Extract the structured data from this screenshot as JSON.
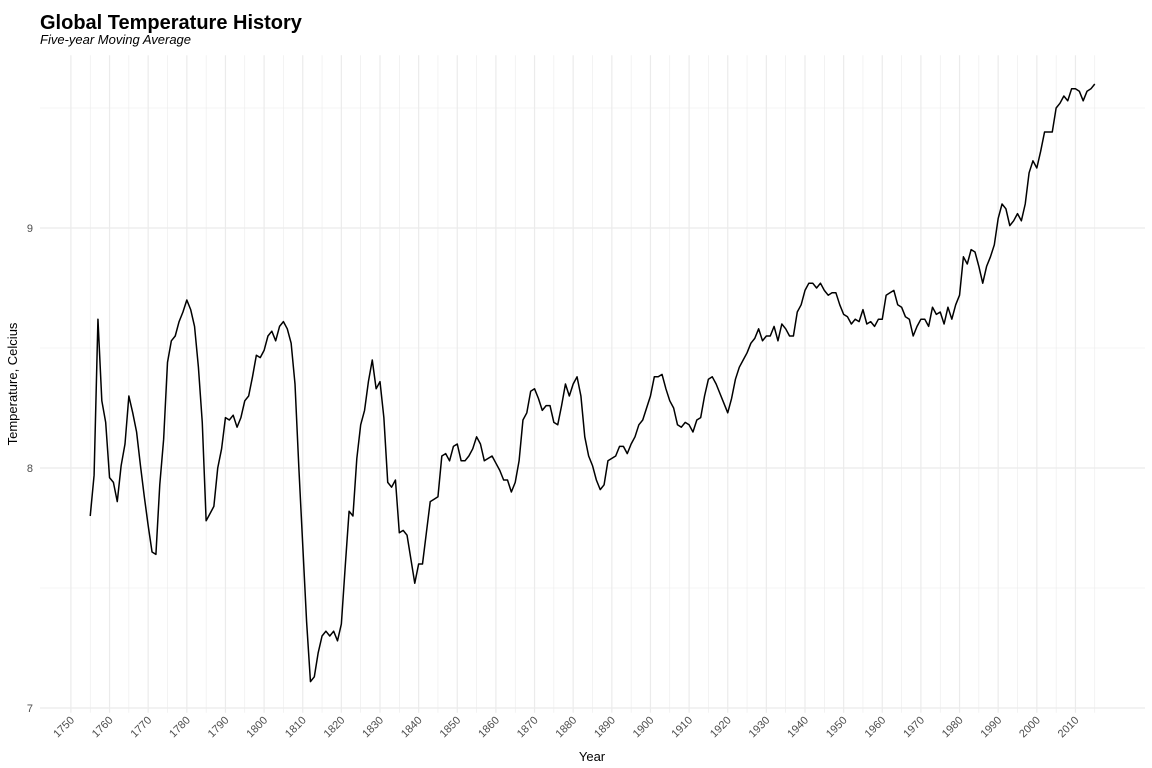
{
  "chart_data": {
    "type": "line",
    "title": "Global Temperature History",
    "subtitle": "Five-year Moving Average",
    "x_label": "Year",
    "y_label": "Temperature, Celcius",
    "x": [
      1755,
      1756,
      1757,
      1758,
      1759,
      1760,
      1761,
      1762,
      1763,
      1764,
      1765,
      1766,
      1767,
      1768,
      1769,
      1770,
      1771,
      1772,
      1773,
      1774,
      1775,
      1776,
      1777,
      1778,
      1779,
      1780,
      1781,
      1782,
      1783,
      1784,
      1785,
      1786,
      1787,
      1788,
      1789,
      1790,
      1791,
      1792,
      1793,
      1794,
      1795,
      1796,
      1797,
      1798,
      1799,
      1800,
      1801,
      1802,
      1803,
      1804,
      1805,
      1806,
      1807,
      1808,
      1809,
      1810,
      1811,
      1812,
      1813,
      1814,
      1815,
      1816,
      1817,
      1818,
      1819,
      1820,
      1821,
      1822,
      1823,
      1824,
      1825,
      1826,
      1827,
      1828,
      1829,
      1830,
      1831,
      1832,
      1833,
      1834,
      1835,
      1836,
      1837,
      1838,
      1839,
      1840,
      1841,
      1842,
      1843,
      1844,
      1845,
      1846,
      1847,
      1848,
      1849,
      1850,
      1851,
      1852,
      1853,
      1854,
      1855,
      1856,
      1857,
      1858,
      1859,
      1860,
      1861,
      1862,
      1863,
      1864,
      1865,
      1866,
      1867,
      1868,
      1869,
      1870,
      1871,
      1872,
      1873,
      1874,
      1875,
      1876,
      1877,
      1878,
      1879,
      1880,
      1881,
      1882,
      1883,
      1884,
      1885,
      1886,
      1887,
      1888,
      1889,
      1890,
      1891,
      1892,
      1893,
      1894,
      1895,
      1896,
      1897,
      1898,
      1899,
      1900,
      1901,
      1902,
      1903,
      1904,
      1905,
      1906,
      1907,
      1908,
      1909,
      1910,
      1911,
      1912,
      1913,
      1914,
      1915,
      1916,
      1917,
      1918,
      1919,
      1920,
      1921,
      1922,
      1923,
      1924,
      1925,
      1926,
      1927,
      1928,
      1929,
      1930,
      1931,
      1932,
      1933,
      1934,
      1935,
      1936,
      1937,
      1938,
      1939,
      1940,
      1941,
      1942,
      1943,
      1944,
      1945,
      1946,
      1947,
      1948,
      1949,
      1950,
      1951,
      1952,
      1953,
      1954,
      1955,
      1956,
      1957,
      1958,
      1959,
      1960,
      1961,
      1962,
      1963,
      1964,
      1965,
      1966,
      1967,
      1968,
      1969,
      1970,
      1971,
      1972,
      1973,
      1974,
      1975,
      1976,
      1977,
      1978,
      1979,
      1980,
      1981,
      1982,
      1983,
      1984,
      1985,
      1986,
      1987,
      1988,
      1989,
      1990,
      1991,
      1992,
      1993,
      1994,
      1995,
      1996,
      1997,
      1998,
      1999,
      2000,
      2001,
      2002,
      2003,
      2004,
      2005,
      2006,
      2007,
      2008,
      2009,
      2010,
      2011,
      2012,
      2013,
      2014,
      2015
    ],
    "series": [
      {
        "color": "#000000",
        "values": [
          7.8,
          7.97,
          8.62,
          8.28,
          8.19,
          7.96,
          7.94,
          7.86,
          8.01,
          8.1,
          8.3,
          8.23,
          8.15,
          8.01,
          7.88,
          7.76,
          7.65,
          7.64,
          7.93,
          8.12,
          8.44,
          8.53,
          8.55,
          8.61,
          8.65,
          8.7,
          8.66,
          8.59,
          8.42,
          8.19,
          7.78,
          7.81,
          7.84,
          8.0,
          8.08,
          8.21,
          8.2,
          8.22,
          8.17,
          8.21,
          8.28,
          8.3,
          8.38,
          8.47,
          8.46,
          8.49,
          8.55,
          8.57,
          8.53,
          8.59,
          8.61,
          8.58,
          8.52,
          8.35,
          8.0,
          7.68,
          7.36,
          7.11,
          7.13,
          7.23,
          7.3,
          7.32,
          7.3,
          7.32,
          7.28,
          7.35,
          7.59,
          7.82,
          7.8,
          8.04,
          8.18,
          8.24,
          8.36,
          8.45,
          8.33,
          8.36,
          8.21,
          7.94,
          7.92,
          7.95,
          7.73,
          7.74,
          7.72,
          7.62,
          7.52,
          7.6,
          7.6,
          7.73,
          7.86,
          7.87,
          7.88,
          8.05,
          8.06,
          8.03,
          8.09,
          8.1,
          8.03,
          8.03,
          8.05,
          8.08,
          8.13,
          8.1,
          8.03,
          8.04,
          8.05,
          8.02,
          7.99,
          7.95,
          7.95,
          7.9,
          7.94,
          8.03,
          8.2,
          8.23,
          8.32,
          8.33,
          8.29,
          8.24,
          8.26,
          8.26,
          8.19,
          8.18,
          8.26,
          8.35,
          8.3,
          8.35,
          8.38,
          8.3,
          8.13,
          8.05,
          8.01,
          7.95,
          7.91,
          7.93,
          8.03,
          8.04,
          8.05,
          8.09,
          8.09,
          8.06,
          8.1,
          8.13,
          8.18,
          8.2,
          8.25,
          8.3,
          8.38,
          8.38,
          8.39,
          8.33,
          8.28,
          8.25,
          8.18,
          8.17,
          8.19,
          8.18,
          8.15,
          8.2,
          8.21,
          8.3,
          8.37,
          8.38,
          8.35,
          8.31,
          8.27,
          8.23,
          8.29,
          8.37,
          8.42,
          8.45,
          8.48,
          8.52,
          8.54,
          8.58,
          8.53,
          8.55,
          8.55,
          8.59,
          8.53,
          8.6,
          8.58,
          8.55,
          8.55,
          8.65,
          8.68,
          8.74,
          8.77,
          8.77,
          8.75,
          8.77,
          8.74,
          8.72,
          8.73,
          8.73,
          8.68,
          8.64,
          8.63,
          8.6,
          8.62,
          8.61,
          8.66,
          8.6,
          8.61,
          8.59,
          8.62,
          8.62,
          8.72,
          8.73,
          8.74,
          8.68,
          8.67,
          8.63,
          8.62,
          8.55,
          8.59,
          8.62,
          8.62,
          8.59,
          8.67,
          8.64,
          8.65,
          8.6,
          8.67,
          8.62,
          8.68,
          8.72,
          8.88,
          8.85,
          8.91,
          8.9,
          8.84,
          8.77,
          8.84,
          8.88,
          8.93,
          9.04,
          9.1,
          9.08,
          9.01,
          9.03,
          9.06,
          9.03,
          9.1,
          9.23,
          9.28,
          9.25,
          9.32,
          9.4,
          9.4,
          9.4,
          9.5,
          9.52,
          9.55,
          9.53,
          9.58,
          9.58,
          9.57,
          9.53,
          9.57,
          9.58,
          9.6
        ]
      }
    ],
    "xlim": [
      1742,
      2028
    ],
    "ylim": [
      6.98,
      9.72
    ],
    "xticks": [
      1750,
      1760,
      1770,
      1780,
      1790,
      1800,
      1810,
      1820,
      1830,
      1840,
      1850,
      1860,
      1870,
      1880,
      1890,
      1900,
      1910,
      1920,
      1930,
      1940,
      1950,
      1960,
      1970,
      1980,
      1990,
      2000,
      2010
    ],
    "minor_xticks": [
      1755,
      1765,
      1775,
      1785,
      1795,
      1805,
      1815,
      1825,
      1835,
      1845,
      1855,
      1865,
      1875,
      1885,
      1895,
      1905,
      1915,
      1925,
      1935,
      1945,
      1955,
      1965,
      1975,
      1985,
      1995,
      2005,
      2015
    ],
    "yticks": [
      7,
      8,
      9
    ],
    "minor_yticks": [
      7.5,
      8.5,
      9.5
    ],
    "grid": true,
    "grid_color": "#ebebeb"
  }
}
